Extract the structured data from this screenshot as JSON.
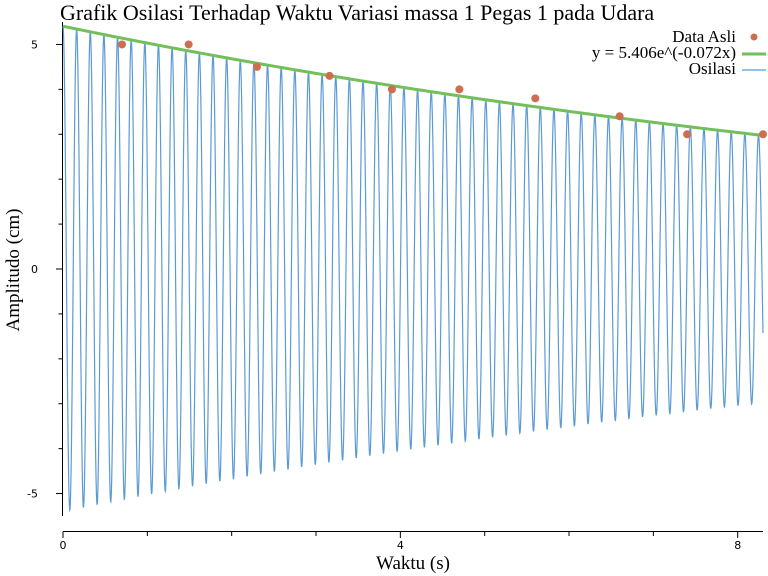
{
  "chart_data": {
    "type": "line",
    "title": "Grafik Osilasi Terhadap Waktu Variasi massa 1 Pegas 1 pada Udara",
    "xlabel": "Waktu (s)",
    "ylabel": "Amplitudo (cm)",
    "xlim": [
      0,
      8.3
    ],
    "ylim": [
      -5.5,
      5.5
    ],
    "x_ticks": [
      0,
      4,
      8
    ],
    "x_tick_labels": [
      "0",
      "4",
      "8"
    ],
    "y_ticks": [
      -5,
      0,
      5
    ],
    "y_tick_labels": [
      "-5",
      "0",
      "5"
    ],
    "legend_position": "top-right",
    "series": [
      {
        "name": "Data Asli",
        "kind": "scatter",
        "color": "#cc6e4f",
        "x": [
          0.7,
          1.49,
          2.3,
          3.16,
          3.9,
          4.7,
          5.6,
          6.6,
          7.4,
          8.3
        ],
        "y": [
          5.0,
          5.0,
          4.5,
          4.3,
          4.0,
          4.0,
          3.8,
          3.4,
          3.0,
          3.0
        ]
      },
      {
        "name": "y = 5.406e^(-0.072x)",
        "kind": "fit",
        "color": "#73bf5a",
        "amplitude": 5.406,
        "decay": 0.072
      },
      {
        "name": "Osilasi",
        "kind": "oscillation",
        "color": "#5b9bd5",
        "amplitude": 5.406,
        "decay": 0.072,
        "period": 0.1617,
        "end_x": 8.3
      }
    ]
  }
}
